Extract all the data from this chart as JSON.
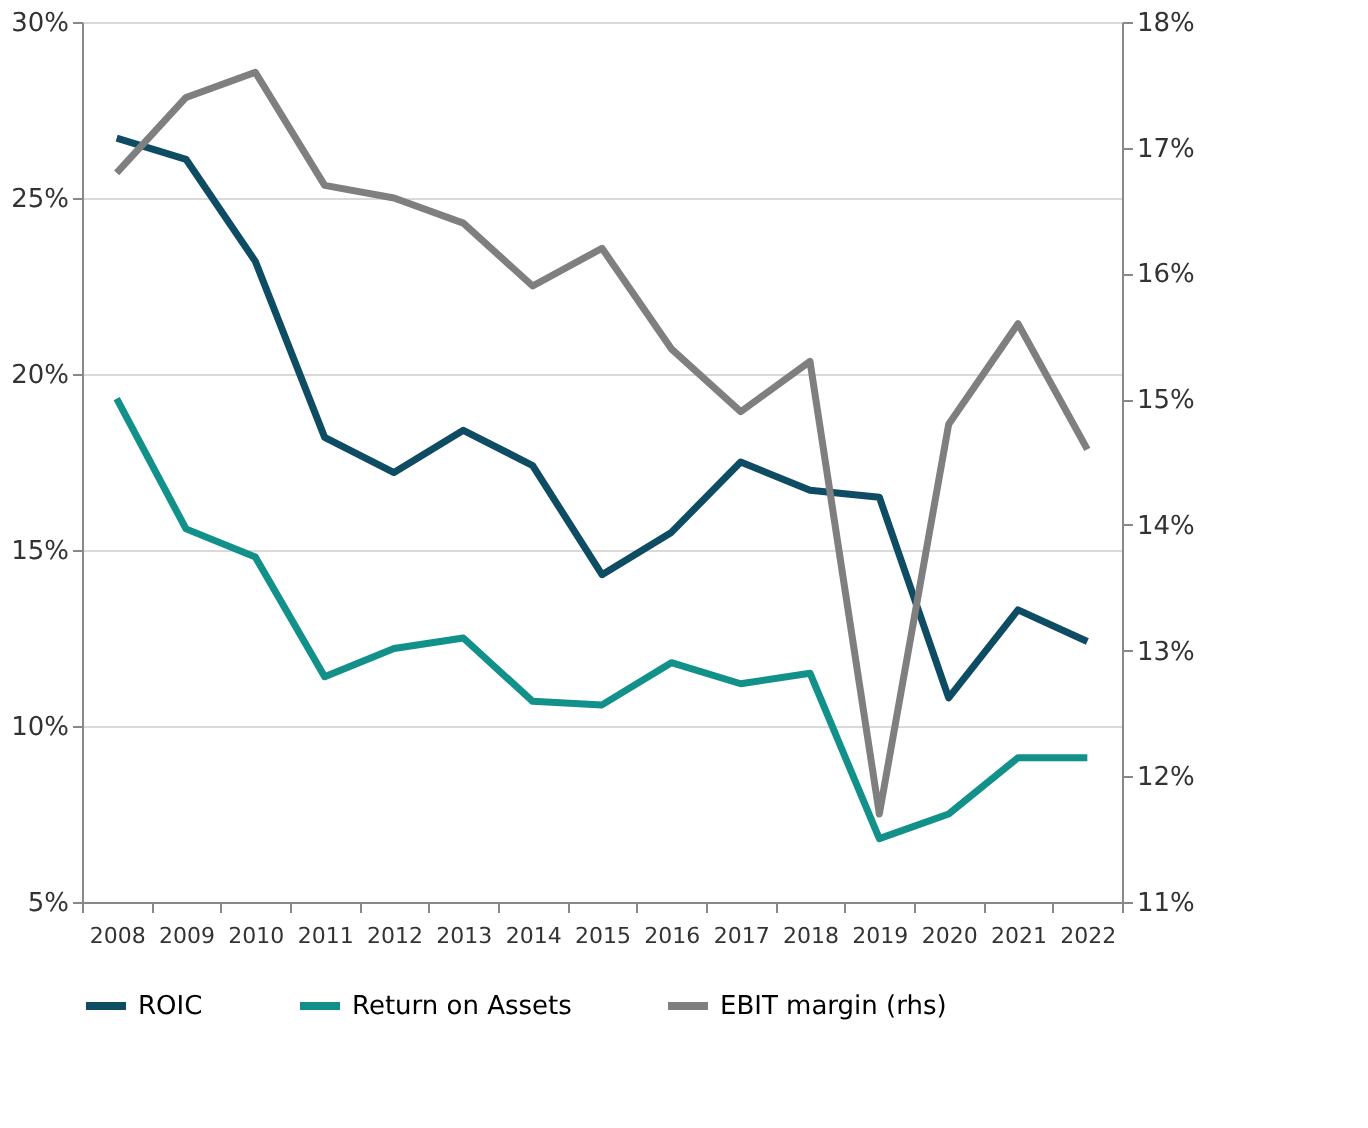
{
  "chart_data": {
    "type": "line",
    "categories": [
      "2008",
      "2009",
      "2010",
      "2011",
      "2012",
      "2013",
      "2014",
      "2015",
      "2016",
      "2017",
      "2018",
      "2019",
      "2020",
      "2021",
      "2022"
    ],
    "series": [
      {
        "name": "ROIC",
        "color": "#0e4c63",
        "values": [
          26.7,
          26.1,
          23.2,
          18.2,
          17.2,
          18.4,
          17.4,
          14.3,
          15.5,
          17.5,
          16.7,
          16.5,
          10.8,
          13.3,
          12.4
        ]
      },
      {
        "name": "Return on Assets",
        "color": "#12918a",
        "values": [
          19.3,
          15.6,
          14.8,
          11.4,
          12.2,
          12.5,
          10.7,
          10.6,
          11.8,
          11.2,
          11.5,
          6.8,
          7.5,
          9.1,
          9.1
        ]
      },
      {
        "name": "EBIT margin (rhs)",
        "color": "#7f7f7f",
        "axis": "y2",
        "values": [
          16.8,
          17.4,
          17.6,
          16.7,
          16.6,
          16.4,
          15.9,
          16.2,
          15.4,
          14.9,
          15.3,
          11.7,
          14.8,
          15.6,
          14.6
        ]
      }
    ],
    "ylim": [
      5,
      30
    ],
    "yticks": [
      {
        "value": 5,
        "label": "5%"
      },
      {
        "value": 10,
        "label": "10%"
      },
      {
        "value": 15,
        "label": "15%"
      },
      {
        "value": 20,
        "label": "20%"
      },
      {
        "value": 25,
        "label": "25%"
      },
      {
        "value": 30,
        "label": "30%"
      }
    ],
    "y2lim": [
      11,
      18
    ],
    "y2ticks": [
      {
        "value": 11,
        "label": "11%"
      },
      {
        "value": 12,
        "label": "12%"
      },
      {
        "value": 13,
        "label": "13%"
      },
      {
        "value": 14,
        "label": "14%"
      },
      {
        "value": 15,
        "label": "15%"
      },
      {
        "value": 16,
        "label": "16%"
      },
      {
        "value": 17,
        "label": "17%"
      },
      {
        "value": 18,
        "label": "18%"
      }
    ],
    "grid": "y",
    "legend": "bottom",
    "marker": "none",
    "line_style": "solid"
  }
}
